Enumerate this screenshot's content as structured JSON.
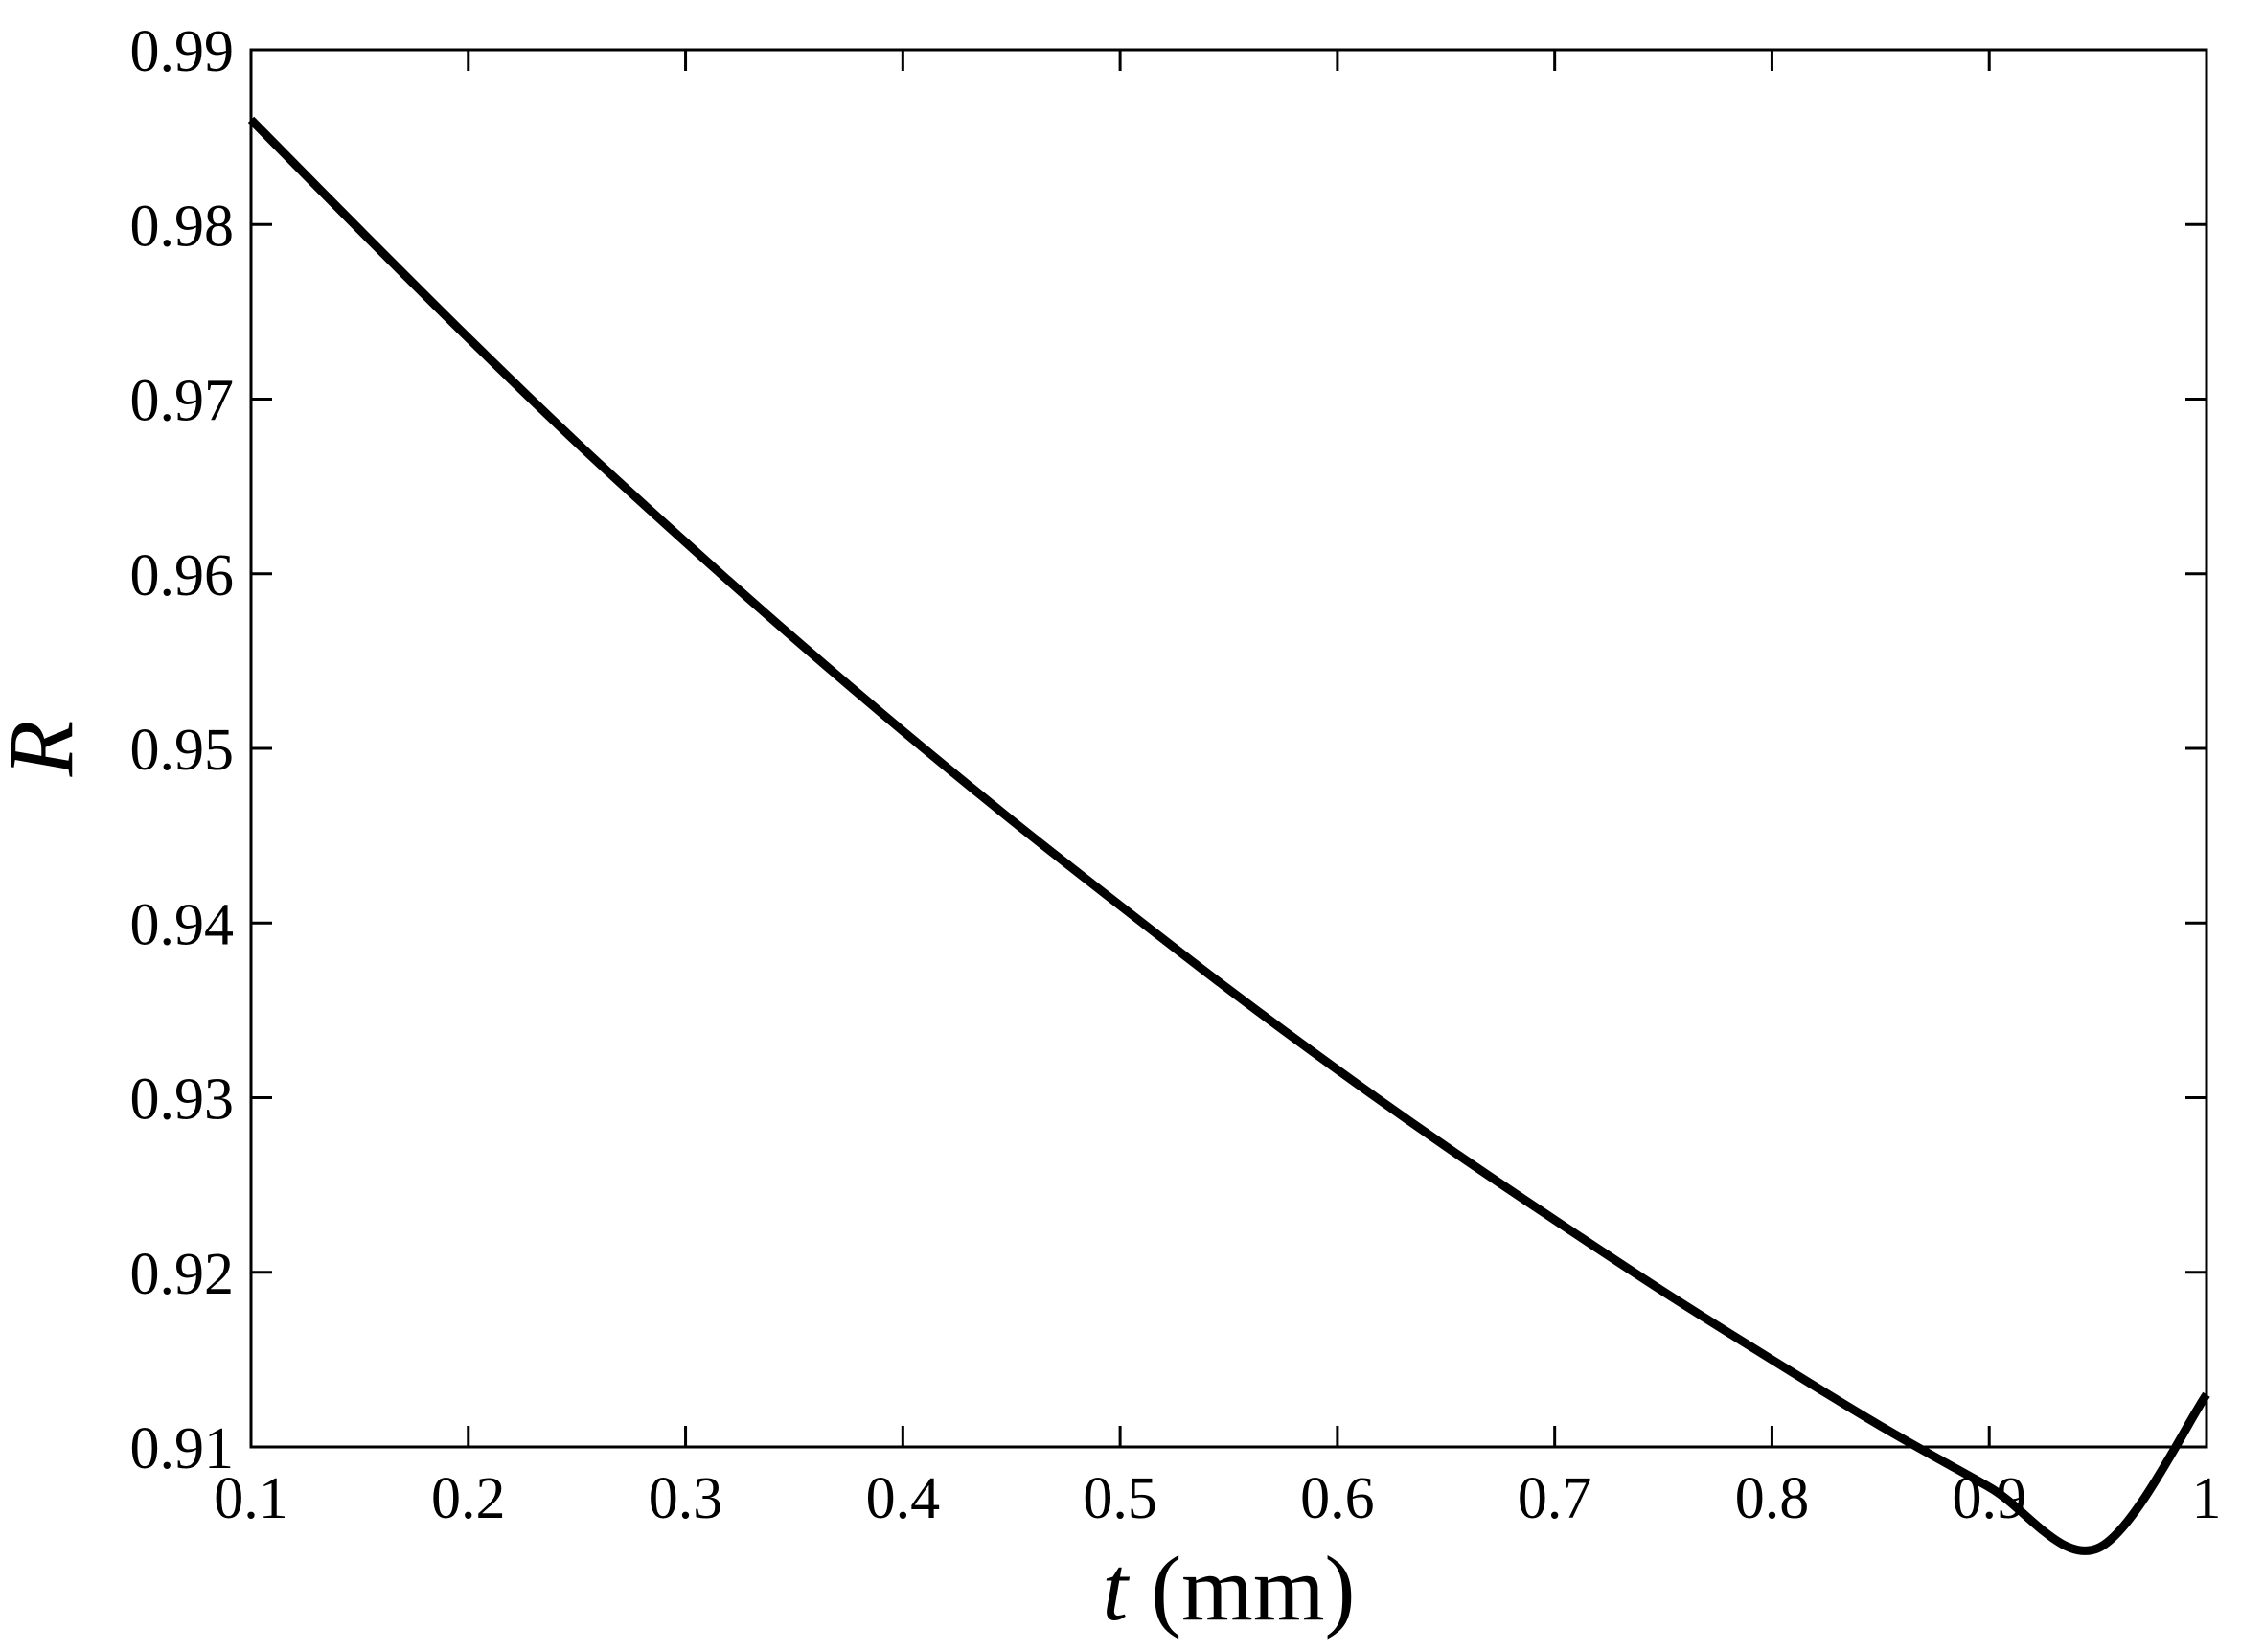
{
  "chart_data": {
    "type": "line",
    "title": "",
    "xlabel": "t (mm)",
    "xlabel_var": "t",
    "xlabel_unit": "(mm)",
    "ylabel": "R",
    "xlim": [
      0.1,
      1.0
    ],
    "ylim": [
      0.91,
      0.99
    ],
    "xticks": [
      0.1,
      0.2,
      0.3,
      0.4,
      0.5,
      0.6,
      0.7,
      0.8,
      0.9,
      1.0
    ],
    "xtick_labels": [
      "0.1",
      "0.2",
      "0.3",
      "0.4",
      "0.5",
      "0.6",
      "0.7",
      "0.8",
      "0.9",
      "1"
    ],
    "yticks": [
      0.91,
      0.92,
      0.93,
      0.94,
      0.95,
      0.96,
      0.97,
      0.98,
      0.99
    ],
    "ytick_labels": [
      "0.91",
      "0.92",
      "0.93",
      "0.94",
      "0.95",
      "0.96",
      "0.97",
      "0.98",
      "0.99"
    ],
    "grid": false,
    "line_color": "#000000",
    "series": [
      {
        "x": [
          0.1,
          0.15,
          0.2,
          0.25,
          0.3,
          0.35,
          0.4,
          0.45,
          0.5,
          0.55,
          0.6,
          0.65,
          0.7,
          0.75,
          0.8,
          0.85,
          0.9,
          0.95,
          1.0
        ],
        "values": [
          0.986,
          0.9797,
          0.9735,
          0.9675,
          0.9618,
          0.9563,
          0.951,
          0.9459,
          0.941,
          0.9362,
          0.9316,
          0.9272,
          0.923,
          0.9189,
          0.915,
          0.9112,
          0.9077,
          0.9042,
          0.913
        ]
      }
    ]
  }
}
